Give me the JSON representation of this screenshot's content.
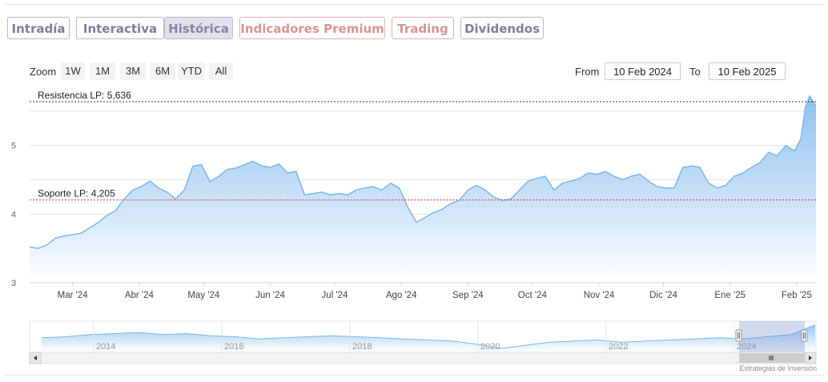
{
  "tabs": [
    {
      "label": "Intradía",
      "state": "normal"
    },
    {
      "label": "Interactiva",
      "state": "normal"
    },
    {
      "label": "Histórica",
      "state": "active"
    },
    {
      "label": "Indicadores Premium",
      "state": "premium"
    },
    {
      "label": "Trading",
      "state": "premium"
    },
    {
      "label": "Dividendos",
      "state": "normal"
    }
  ],
  "range_selector": {
    "zoom_label": "Zoom",
    "buttons": [
      "1W",
      "1M",
      "3M",
      "6M",
      "YTD",
      "All"
    ],
    "from_label": "From",
    "from_value": "10 Feb 2024",
    "to_label": "To",
    "to_value": "10 Feb 2025"
  },
  "credit": "Estrategias de Inversión",
  "colors": {
    "series_line": "#7cb5ec",
    "area_top": "#7cb5ec",
    "area_bottom": "#ffffff",
    "resistance_line": "#333333",
    "support_line": "#c0392b",
    "tab_border": "#b9b9c9",
    "premium_border": "#e3b0ad"
  },
  "chart_data": {
    "type": "area",
    "x_start": "2024-02-10",
    "x_end": "2025-02-10",
    "ylim": [
      3,
      5.8
    ],
    "y_ticks": [
      3,
      4,
      5
    ],
    "x_tick_labels": [
      "Mar '24",
      "Abr '24",
      "May '24",
      "Jun '24",
      "Jul '24",
      "Ago '24",
      "Sep '24",
      "Oct '24",
      "Nov '24",
      "Dic '24",
      "Ene '25",
      "Feb '25"
    ],
    "x_tick_dates": [
      "2024-03-01",
      "2024-04-01",
      "2024-05-01",
      "2024-06-01",
      "2024-07-01",
      "2024-08-01",
      "2024-09-01",
      "2024-10-01",
      "2024-11-01",
      "2024-12-01",
      "2025-01-01",
      "2025-02-01"
    ],
    "series": [
      {
        "x": [
          "2024-02-10",
          "2024-02-14",
          "2024-02-18",
          "2024-02-22",
          "2024-02-26",
          "2024-03-01",
          "2024-03-05",
          "2024-03-09",
          "2024-03-13",
          "2024-03-17",
          "2024-03-21",
          "2024-03-25",
          "2024-03-29",
          "2024-04-02",
          "2024-04-06",
          "2024-04-10",
          "2024-04-14",
          "2024-04-18",
          "2024-04-22",
          "2024-04-26",
          "2024-04-30",
          "2024-05-04",
          "2024-05-08",
          "2024-05-12",
          "2024-05-16",
          "2024-05-20",
          "2024-05-24",
          "2024-05-28",
          "2024-06-01",
          "2024-06-05",
          "2024-06-09",
          "2024-06-13",
          "2024-06-17",
          "2024-06-21",
          "2024-06-25",
          "2024-06-29",
          "2024-07-03",
          "2024-07-07",
          "2024-07-11",
          "2024-07-15",
          "2024-07-19",
          "2024-07-23",
          "2024-07-27",
          "2024-07-31",
          "2024-08-04",
          "2024-08-08",
          "2024-08-12",
          "2024-08-16",
          "2024-08-20",
          "2024-08-24",
          "2024-08-28",
          "2024-09-01",
          "2024-09-05",
          "2024-09-09",
          "2024-09-13",
          "2024-09-17",
          "2024-09-21",
          "2024-09-25",
          "2024-09-29",
          "2024-10-03",
          "2024-10-07",
          "2024-10-11",
          "2024-10-15",
          "2024-10-19",
          "2024-10-23",
          "2024-10-27",
          "2024-10-31",
          "2024-11-04",
          "2024-11-08",
          "2024-11-12",
          "2024-11-16",
          "2024-11-20",
          "2024-11-24",
          "2024-11-28",
          "2024-12-02",
          "2024-12-06",
          "2024-12-10",
          "2024-12-14",
          "2024-12-18",
          "2024-12-22",
          "2024-12-26",
          "2024-12-30",
          "2025-01-03",
          "2025-01-07",
          "2025-01-11",
          "2025-01-15",
          "2025-01-19",
          "2025-01-23",
          "2025-01-27",
          "2025-01-31",
          "2025-02-03",
          "2025-02-05",
          "2025-02-07",
          "2025-02-10"
        ],
        "values": [
          3.52,
          3.5,
          3.55,
          3.65,
          3.68,
          3.7,
          3.72,
          3.8,
          3.88,
          3.98,
          4.05,
          4.22,
          4.35,
          4.4,
          4.48,
          4.38,
          4.32,
          4.22,
          4.35,
          4.7,
          4.72,
          4.47,
          4.55,
          4.65,
          4.67,
          4.72,
          4.77,
          4.7,
          4.68,
          4.73,
          4.6,
          4.62,
          4.28,
          4.3,
          4.32,
          4.28,
          4.3,
          4.28,
          4.35,
          4.38,
          4.4,
          4.35,
          4.45,
          4.38,
          4.1,
          3.88,
          3.95,
          4.02,
          4.07,
          4.15,
          4.2,
          4.35,
          4.42,
          4.35,
          4.25,
          4.2,
          4.22,
          4.35,
          4.48,
          4.52,
          4.55,
          4.35,
          4.45,
          4.48,
          4.52,
          4.6,
          4.58,
          4.62,
          4.55,
          4.5,
          4.55,
          4.58,
          4.48,
          4.4,
          4.38,
          4.38,
          4.68,
          4.7,
          4.68,
          4.45,
          4.38,
          4.42,
          4.55,
          4.6,
          4.68,
          4.75,
          4.9,
          4.85,
          5.0,
          4.92,
          5.1,
          5.55,
          5.72,
          5.58
        ]
      }
    ],
    "annotations": [
      {
        "label": "Resistencia LP: 5,636",
        "value": 5.636,
        "style": "dashed",
        "color": "#333333"
      },
      {
        "label": "Soporte LP: 4,205",
        "value": 4.205,
        "style": "dashed",
        "color": "#c0392b"
      }
    ],
    "navigator": {
      "year_labels": [
        "2014",
        "2016",
        "2018",
        "2020",
        "2022",
        "2024"
      ],
      "values": [
        4.4,
        4.5,
        4.7,
        4.8,
        4.9,
        4.7,
        4.8,
        4.6,
        4.5,
        4.3,
        4.4,
        4.5,
        4.6,
        4.5,
        4.4,
        4.3,
        4.2,
        4.1,
        3.8,
        3.4,
        3.7,
        4.0,
        4.1,
        4.2,
        4.0,
        4.1,
        4.2,
        4.3,
        4.4,
        4.3,
        4.5,
        4.7,
        5.6
      ]
    }
  }
}
